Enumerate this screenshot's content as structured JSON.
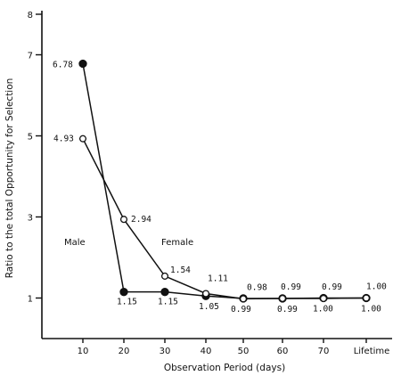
{
  "chart_data": {
    "type": "line",
    "xlabel": "Observation Period (days)",
    "ylabel": "Ratio to the total Opportunity for Selection",
    "categories": [
      "10",
      "20",
      "30",
      "40",
      "50",
      "60",
      "70",
      "Lifetime"
    ],
    "ylim": [
      0,
      8
    ],
    "yticks": [
      1,
      3,
      5,
      7,
      8
    ],
    "grid": false,
    "series": [
      {
        "name": "Male",
        "marker": "filled-circle",
        "color": "#111111",
        "values": [
          6.78,
          1.15,
          1.15,
          1.05,
          0.99,
          0.99,
          1.0,
          1.0
        ],
        "labels": [
          "6.78",
          "1.15",
          "1.15",
          "1.05",
          "0.99",
          "0.99",
          "1.00",
          "1.00"
        ]
      },
      {
        "name": "Female",
        "marker": "open-circle",
        "color": "#111111",
        "values": [
          4.93,
          2.94,
          1.54,
          1.11,
          0.98,
          0.99,
          0.99,
          1.0
        ],
        "labels": [
          "4.93",
          "2.94",
          "1.54",
          "1.11",
          "0.98",
          "0.99",
          "0.99",
          "1.00"
        ]
      }
    ]
  }
}
